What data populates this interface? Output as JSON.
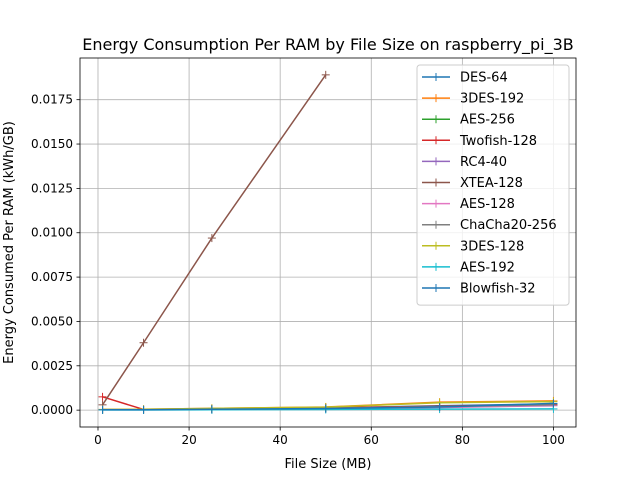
{
  "chart_data": {
    "type": "line",
    "title": "Energy Consumption Per RAM by File Size on raspberry_pi_3B",
    "xlabel": "File Size (MB)",
    "ylabel": "Energy Consumed Per RAM (kWh/GB)",
    "xlim": [
      -3.95,
      104.95
    ],
    "ylim": [
      -0.00095,
      0.01985
    ],
    "xticks": [
      0,
      20,
      40,
      60,
      80,
      100
    ],
    "yticks": [
      0.0,
      0.0025,
      0.005,
      0.0075,
      0.01,
      0.0125,
      0.015,
      0.0175
    ],
    "xtick_labels": [
      "0",
      "20",
      "40",
      "60",
      "80",
      "100"
    ],
    "ytick_labels": [
      "0.0000",
      "0.0025",
      "0.0050",
      "0.0075",
      "0.0100",
      "0.0125",
      "0.0150",
      "0.0175"
    ],
    "grid": true,
    "legend_position": "upper-right",
    "marker": "+",
    "series": [
      {
        "name": "DES-64",
        "color": "#1f77b4",
        "x": [
          1,
          10,
          25,
          50,
          75,
          100
        ],
        "y": [
          3e-05,
          3e-05,
          7e-05,
          0.00012,
          0.00025,
          0.00035
        ]
      },
      {
        "name": "3DES-192",
        "color": "#ff7f0e",
        "x": [
          1,
          10,
          25,
          50,
          75,
          100
        ],
        "y": [
          4e-05,
          5e-05,
          0.0001,
          0.00018,
          0.00045,
          0.00052
        ]
      },
      {
        "name": "AES-256",
        "color": "#2ca02c",
        "x": [
          1,
          10,
          25,
          50,
          75,
          100
        ],
        "y": [
          2e-05,
          2e-05,
          5e-05,
          0.0001,
          0.00018,
          0.00028
        ]
      },
      {
        "name": "Twofish-128",
        "color": "#d62728",
        "x": [
          1,
          10,
          25,
          50,
          75,
          100
        ],
        "y": [
          0.00075,
          4e-05,
          8e-05,
          0.00014,
          0.00022,
          0.00032
        ]
      },
      {
        "name": "RC4-40",
        "color": "#9467bd",
        "x": [
          1,
          10,
          25,
          50,
          75,
          100
        ],
        "y": [
          2e-05,
          2e-05,
          4e-05,
          8e-05,
          0.00015,
          0.00025
        ]
      },
      {
        "name": "XTEA-128",
        "color": "#8c564b",
        "x": [
          1,
          10,
          25,
          50
        ],
        "y": [
          0.0003,
          0.0038,
          0.0097,
          0.0189
        ]
      },
      {
        "name": "AES-128",
        "color": "#e377c2",
        "x": [
          1,
          10,
          25,
          50,
          75,
          100
        ],
        "y": [
          2e-05,
          2e-05,
          5e-05,
          9e-05,
          0.00016,
          0.00027
        ]
      },
      {
        "name": "ChaCha20-256",
        "color": "#7f7f7f",
        "x": [
          1,
          10,
          25,
          50,
          75,
          100
        ],
        "y": [
          2e-05,
          3e-05,
          6e-05,
          0.00011,
          0.0002,
          0.0003
        ]
      },
      {
        "name": "3DES-128",
        "color": "#bcbd22",
        "x": [
          1,
          10,
          25,
          50,
          75,
          100
        ],
        "y": [
          4e-05,
          5e-05,
          0.0001,
          0.00017,
          0.00042,
          0.00048
        ]
      },
      {
        "name": "AES-192",
        "color": "#17becf",
        "x": [
          1,
          10,
          25,
          50,
          75,
          100
        ],
        "y": [
          1e-05,
          1e-05,
          2e-05,
          4e-05,
          6e-05,
          7e-05
        ]
      },
      {
        "name": "Blowfish-32",
        "color": "#1f77b4",
        "x": [
          1,
          10,
          25,
          50,
          75,
          100
        ],
        "y": [
          2e-05,
          2e-05,
          5e-05,
          9e-05,
          0.00018,
          0.00038
        ]
      }
    ]
  }
}
